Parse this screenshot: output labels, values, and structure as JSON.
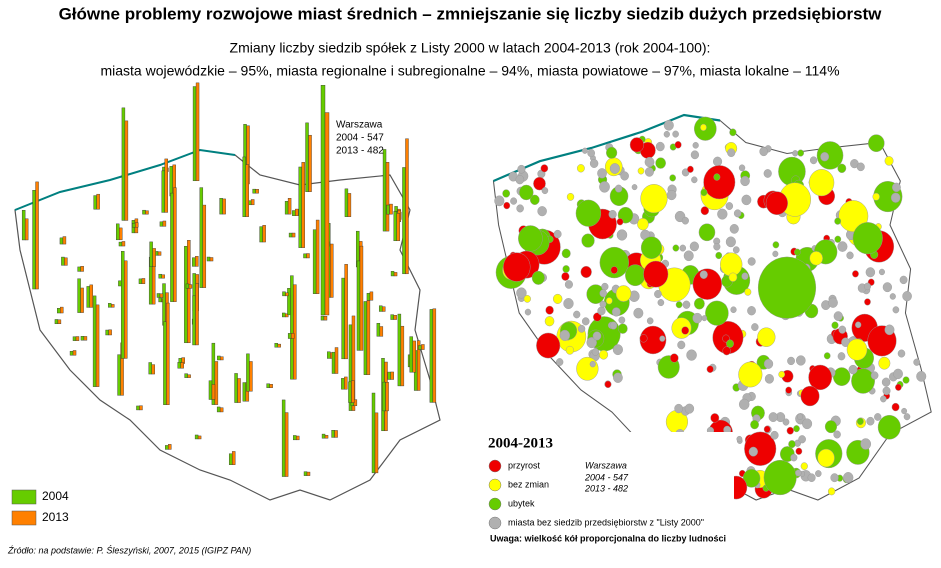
{
  "title": "Główne problemy rozwojowe miast średnich – zmniejszanie się liczby siedzib dużych przedsiębiorstw",
  "subtitle_lines": [
    "Zmiany liczby siedzib spółek z Listy 2000 w latach 2004-2013 (rok 2004-100):",
    "miasta wojewódzkie – 95%, miasta regionalne i subregionalne – 94%, miasta powiatowe – 97%, miasta lokalne – 114%"
  ],
  "left_map": {
    "legend": [
      {
        "label": "2004",
        "color": "#66cc00"
      },
      {
        "label": "2013",
        "color": "#ff8000"
      }
    ],
    "warszawa": {
      "city": "Warszawa",
      "values": [
        547,
        482
      ],
      "value_labels": [
        "2004 - 547",
        "2013 - 482"
      ]
    }
  },
  "right_map": {
    "legend_title": "2004-2013",
    "legend": [
      {
        "label": "przyrost",
        "color": "#ee0000"
      },
      {
        "label": "bez zmian",
        "color": "#ffff00"
      },
      {
        "label": "ubytek",
        "color": "#66cc00"
      },
      {
        "label": "miasta bez siedzib przedsiębiorstw z \"Listy 2000\"",
        "color": "#b0b0b0"
      }
    ],
    "warszawa": {
      "city": "Warszawa",
      "value_labels": [
        "2004 - 547",
        "2013 - 482"
      ]
    },
    "note": "Uwaga: wielkość kół proporcjonalna do liczby ludności"
  },
  "source": "Źródło: na podstawie: P. Śleszyński, 2007, 2015 (IGIPZ PAN)"
}
